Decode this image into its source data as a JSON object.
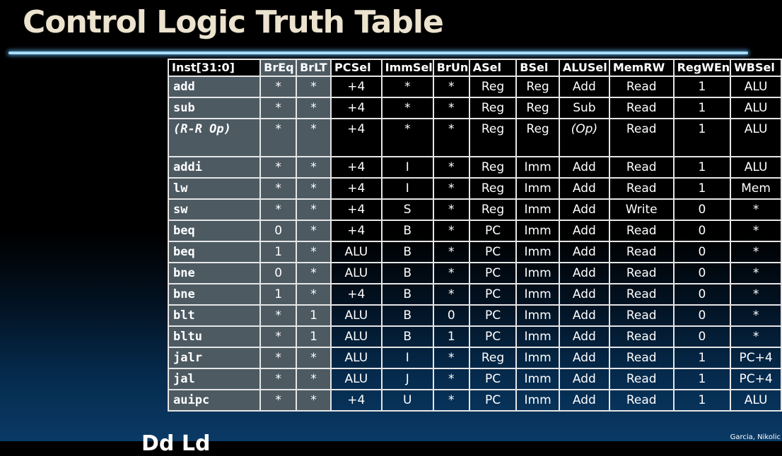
{
  "slide": {
    "title": "Control Logic Truth Table",
    "attribution": "Garcia, Nikolic",
    "cut_text": "Dd Ld"
  },
  "table": {
    "headers": [
      "Inst[31:0]",
      "BrEq",
      "BrLT",
      "PCSel",
      "ImmSel",
      "BrUn",
      "ASel",
      "BSel",
      "ALUSel",
      "MemRW",
      "RegWEn",
      "WBSel"
    ],
    "rows": [
      [
        "add",
        "*",
        "*",
        "+4",
        "*",
        "*",
        "Reg",
        "Reg",
        "Add",
        "Read",
        "1",
        "ALU"
      ],
      [
        "sub",
        "*",
        "*",
        "+4",
        "*",
        "*",
        "Reg",
        "Reg",
        "Sub",
        "Read",
        "1",
        "ALU"
      ],
      [
        "(R-R Op)",
        "*",
        "*",
        "+4",
        "*",
        "*",
        "Reg",
        "Reg",
        "(Op)",
        "Read",
        "1",
        "ALU"
      ],
      [
        "addi",
        "*",
        "*",
        "+4",
        "I",
        "*",
        "Reg",
        "Imm",
        "Add",
        "Read",
        "1",
        "ALU"
      ],
      [
        "lw",
        "*",
        "*",
        "+4",
        "I",
        "*",
        "Reg",
        "Imm",
        "Add",
        "Read",
        "1",
        "Mem"
      ],
      [
        "sw",
        "*",
        "*",
        "+4",
        "S",
        "*",
        "Reg",
        "Imm",
        "Add",
        "Write",
        "0",
        "*"
      ],
      [
        "beq",
        "0",
        "*",
        "+4",
        "B",
        "*",
        "PC",
        "Imm",
        "Add",
        "Read",
        "0",
        "*"
      ],
      [
        "beq",
        "1",
        "*",
        "ALU",
        "B",
        "*",
        "PC",
        "Imm",
        "Add",
        "Read",
        "0",
        "*"
      ],
      [
        "bne",
        "0",
        "*",
        "ALU",
        "B",
        "*",
        "PC",
        "Imm",
        "Add",
        "Read",
        "0",
        "*"
      ],
      [
        "bne",
        "1",
        "*",
        "+4",
        "B",
        "*",
        "PC",
        "Imm",
        "Add",
        "Read",
        "0",
        "*"
      ],
      [
        "blt",
        "*",
        "1",
        "ALU",
        "B",
        "0",
        "PC",
        "Imm",
        "Add",
        "Read",
        "0",
        "*"
      ],
      [
        "bltu",
        "*",
        "1",
        "ALU",
        "B",
        "1",
        "PC",
        "Imm",
        "Add",
        "Read",
        "0",
        "*"
      ],
      [
        "jalr",
        "*",
        "*",
        "ALU",
        "I",
        "*",
        "Reg",
        "Imm",
        "Add",
        "Read",
        "1",
        "PC+4"
      ],
      [
        "jal",
        "*",
        "*",
        "ALU",
        "J",
        "*",
        "PC",
        "Imm",
        "Add",
        "Read",
        "1",
        "PC+4"
      ],
      [
        "auipc",
        "*",
        "*",
        "+4",
        "U",
        "*",
        "PC",
        "Imm",
        "Add",
        "Read",
        "1",
        "ALU"
      ]
    ]
  },
  "colors": {
    "title": "#ece3cf",
    "rule": "#a6dcf7",
    "shaded_columns": "#4d5a62",
    "grid": "#e6e6e6",
    "text": "#ffffff"
  }
}
